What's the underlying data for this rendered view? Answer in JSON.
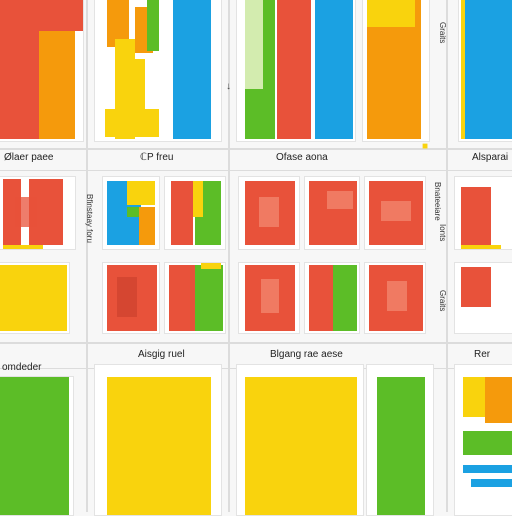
{
  "colors": {
    "red": "#e8523a",
    "orange": "#f59a0c",
    "yellow": "#f9d30d",
    "green": "#5cbd27",
    "blue": "#1ba1e2",
    "light_green": "#b6e07a"
  },
  "labels": {
    "row1_col1": "Ølaer paee",
    "row1_col2": "ℂP freu",
    "row1_col3": "Ofase aona",
    "row1_col4": "Alsparai",
    "row2_col2": "Aisgig ruel",
    "row2_col3": "Blgang rae aese",
    "row2_col4": "Rer",
    "row2_col1": "omdeder"
  },
  "side_labels": {
    "top_right": "Graits",
    "mid_left": "Bfinstaay foru",
    "mid_right_a": "Bnateeiare",
    "mid_right_b": "Ionts",
    "mid_right_c": "Graits"
  },
  "icons": {
    "corner": "small-yellow-sprite-icon",
    "arrow": "arrow-icon"
  }
}
